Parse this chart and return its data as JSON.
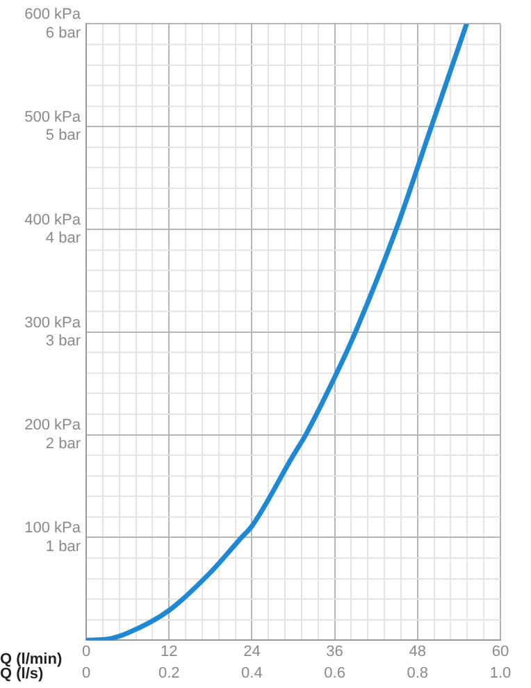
{
  "chart_data": {
    "type": "line",
    "xlabel": "Q (l/min)",
    "x2label": "Q (l/s)",
    "x": [
      0,
      3,
      6,
      12,
      18,
      22.5,
      24,
      30,
      31.8,
      36,
      39,
      44.9,
      50,
      55.1
    ],
    "series": [
      {
        "color": "#1f88d2",
        "values": [
          0,
          1,
          7,
          29,
          66,
          100,
          111,
          180,
          200,
          256,
          300,
          400,
          500,
          600
        ]
      }
    ],
    "xlim": [
      0,
      60
    ],
    "xticks": [
      0,
      {
        "value": 2.4,
        "label": null
      },
      {
        "value": 4.8,
        "label": null
      },
      {
        "value": 7.2,
        "label": null
      },
      {
        "value": 9.6,
        "label": null
      },
      12,
      {
        "value": 14.4,
        "label": null
      },
      {
        "value": 16.8,
        "label": null
      },
      {
        "value": 19.2,
        "label": null
      },
      {
        "value": 21.6,
        "label": null
      },
      24,
      {
        "value": 26.4,
        "label": null
      },
      {
        "value": 28.8,
        "label": null
      },
      {
        "value": 31.2,
        "label": null
      },
      {
        "value": 33.6,
        "label": null
      },
      36,
      {
        "value": 38.4,
        "label": null
      },
      {
        "value": 40.8,
        "label": null
      },
      {
        "value": 43.2,
        "label": null
      },
      {
        "value": 45.6,
        "label": null
      },
      48,
      {
        "value": 50.4,
        "label": null
      },
      {
        "value": 52.8,
        "label": null
      },
      {
        "value": 55.2,
        "label": null
      },
      {
        "value": 57.6,
        "label": null
      },
      60
    ],
    "x2lim": [
      0,
      1
    ],
    "x2ticks": [
      0,
      0.2,
      0.4,
      0.6,
      0.8,
      {
        "value": 1,
        "label": "1.0"
      }
    ],
    "ylim": [
      0,
      600
    ],
    "yticks": [
      {
        "value": 0,
        "label": null
      },
      {
        "value": 20,
        "label": null
      },
      {
        "value": 40,
        "label": null
      },
      {
        "value": 60,
        "label": null
      },
      {
        "value": 80,
        "label": null
      },
      {
        "value": 100,
        "label": "100 kPa"
      },
      {
        "value": 120,
        "label": null
      },
      {
        "value": 140,
        "label": null
      },
      {
        "value": 160,
        "label": null
      },
      {
        "value": 180,
        "label": null
      },
      {
        "value": 200,
        "label": "200 kPa"
      },
      {
        "value": 220,
        "label": null
      },
      {
        "value": 240,
        "label": null
      },
      {
        "value": 260,
        "label": null
      },
      {
        "value": 280,
        "label": null
      },
      {
        "value": 300,
        "label": "300 kPa"
      },
      {
        "value": 320,
        "label": null
      },
      {
        "value": 340,
        "label": null
      },
      {
        "value": 360,
        "label": null
      },
      {
        "value": 380,
        "label": null
      },
      {
        "value": 400,
        "label": "400 kPa"
      },
      {
        "value": 420,
        "label": null
      },
      {
        "value": 440,
        "label": null
      },
      {
        "value": 460,
        "label": null
      },
      {
        "value": 480,
        "label": null
      },
      {
        "value": 500,
        "label": "500 kPa"
      },
      {
        "value": 520,
        "label": null
      },
      {
        "value": 540,
        "label": null
      },
      {
        "value": 560,
        "label": null
      },
      {
        "value": 580,
        "label": null
      },
      {
        "value": 600,
        "label": "600 kPa"
      }
    ],
    "y2lim": [
      0,
      6
    ],
    "y2ticks": [
      {
        "value": 1,
        "label": "1 bar"
      },
      {
        "value": 2,
        "label": "2 bar"
      },
      {
        "value": 3,
        "label": "3 bar"
      },
      {
        "value": 4,
        "label": "4 bar"
      },
      {
        "value": 5,
        "label": "5 bar"
      },
      {
        "value": 6,
        "label": "6 bar"
      }
    ],
    "grid": true,
    "legend": false,
    "marker": "none",
    "line_style": "solid"
  }
}
